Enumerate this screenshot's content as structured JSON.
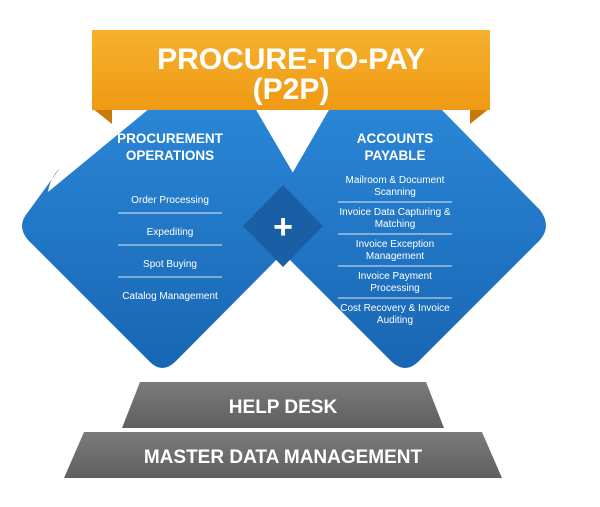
{
  "banner": {
    "line1": "PROCURE-TO-PAY",
    "line2": "(P2P)"
  },
  "procurement": {
    "title_line1": "PROCUREMENT",
    "title_line2": "OPERATIONS",
    "items": [
      "Order Processing",
      "Expediting",
      "Spot Buying",
      "Catalog Management"
    ]
  },
  "payable": {
    "title_line1": "ACCOUNTS",
    "title_line2": "PAYABLE",
    "items": [
      {
        "line1": "Mailroom & Document",
        "line2": "Scanning"
      },
      {
        "line1": "Invoice Data Capturing &",
        "line2": "Matching"
      },
      {
        "line1": "Invoice Exception",
        "line2": "Management"
      },
      {
        "line1": "Invoice Payment",
        "line2": "Processing"
      },
      {
        "line1": "Cost Recovery & Invoice",
        "line2": "Auditing"
      }
    ]
  },
  "center_symbol": "+",
  "base": {
    "help_desk": "HELP DESK",
    "master_data": "MASTER DATA MANAGEMENT"
  },
  "colors": {
    "banner": "#f2a21b",
    "banner_shadow": "#c77a0a",
    "diamond": "#1f78c8",
    "diamond_dark": "#14508e",
    "overlap": "#1a5fa6",
    "plinth": "#6d6d6d",
    "plinth_light": "#8a8a8a"
  },
  "icons": {
    "center": "plus-icon"
  }
}
